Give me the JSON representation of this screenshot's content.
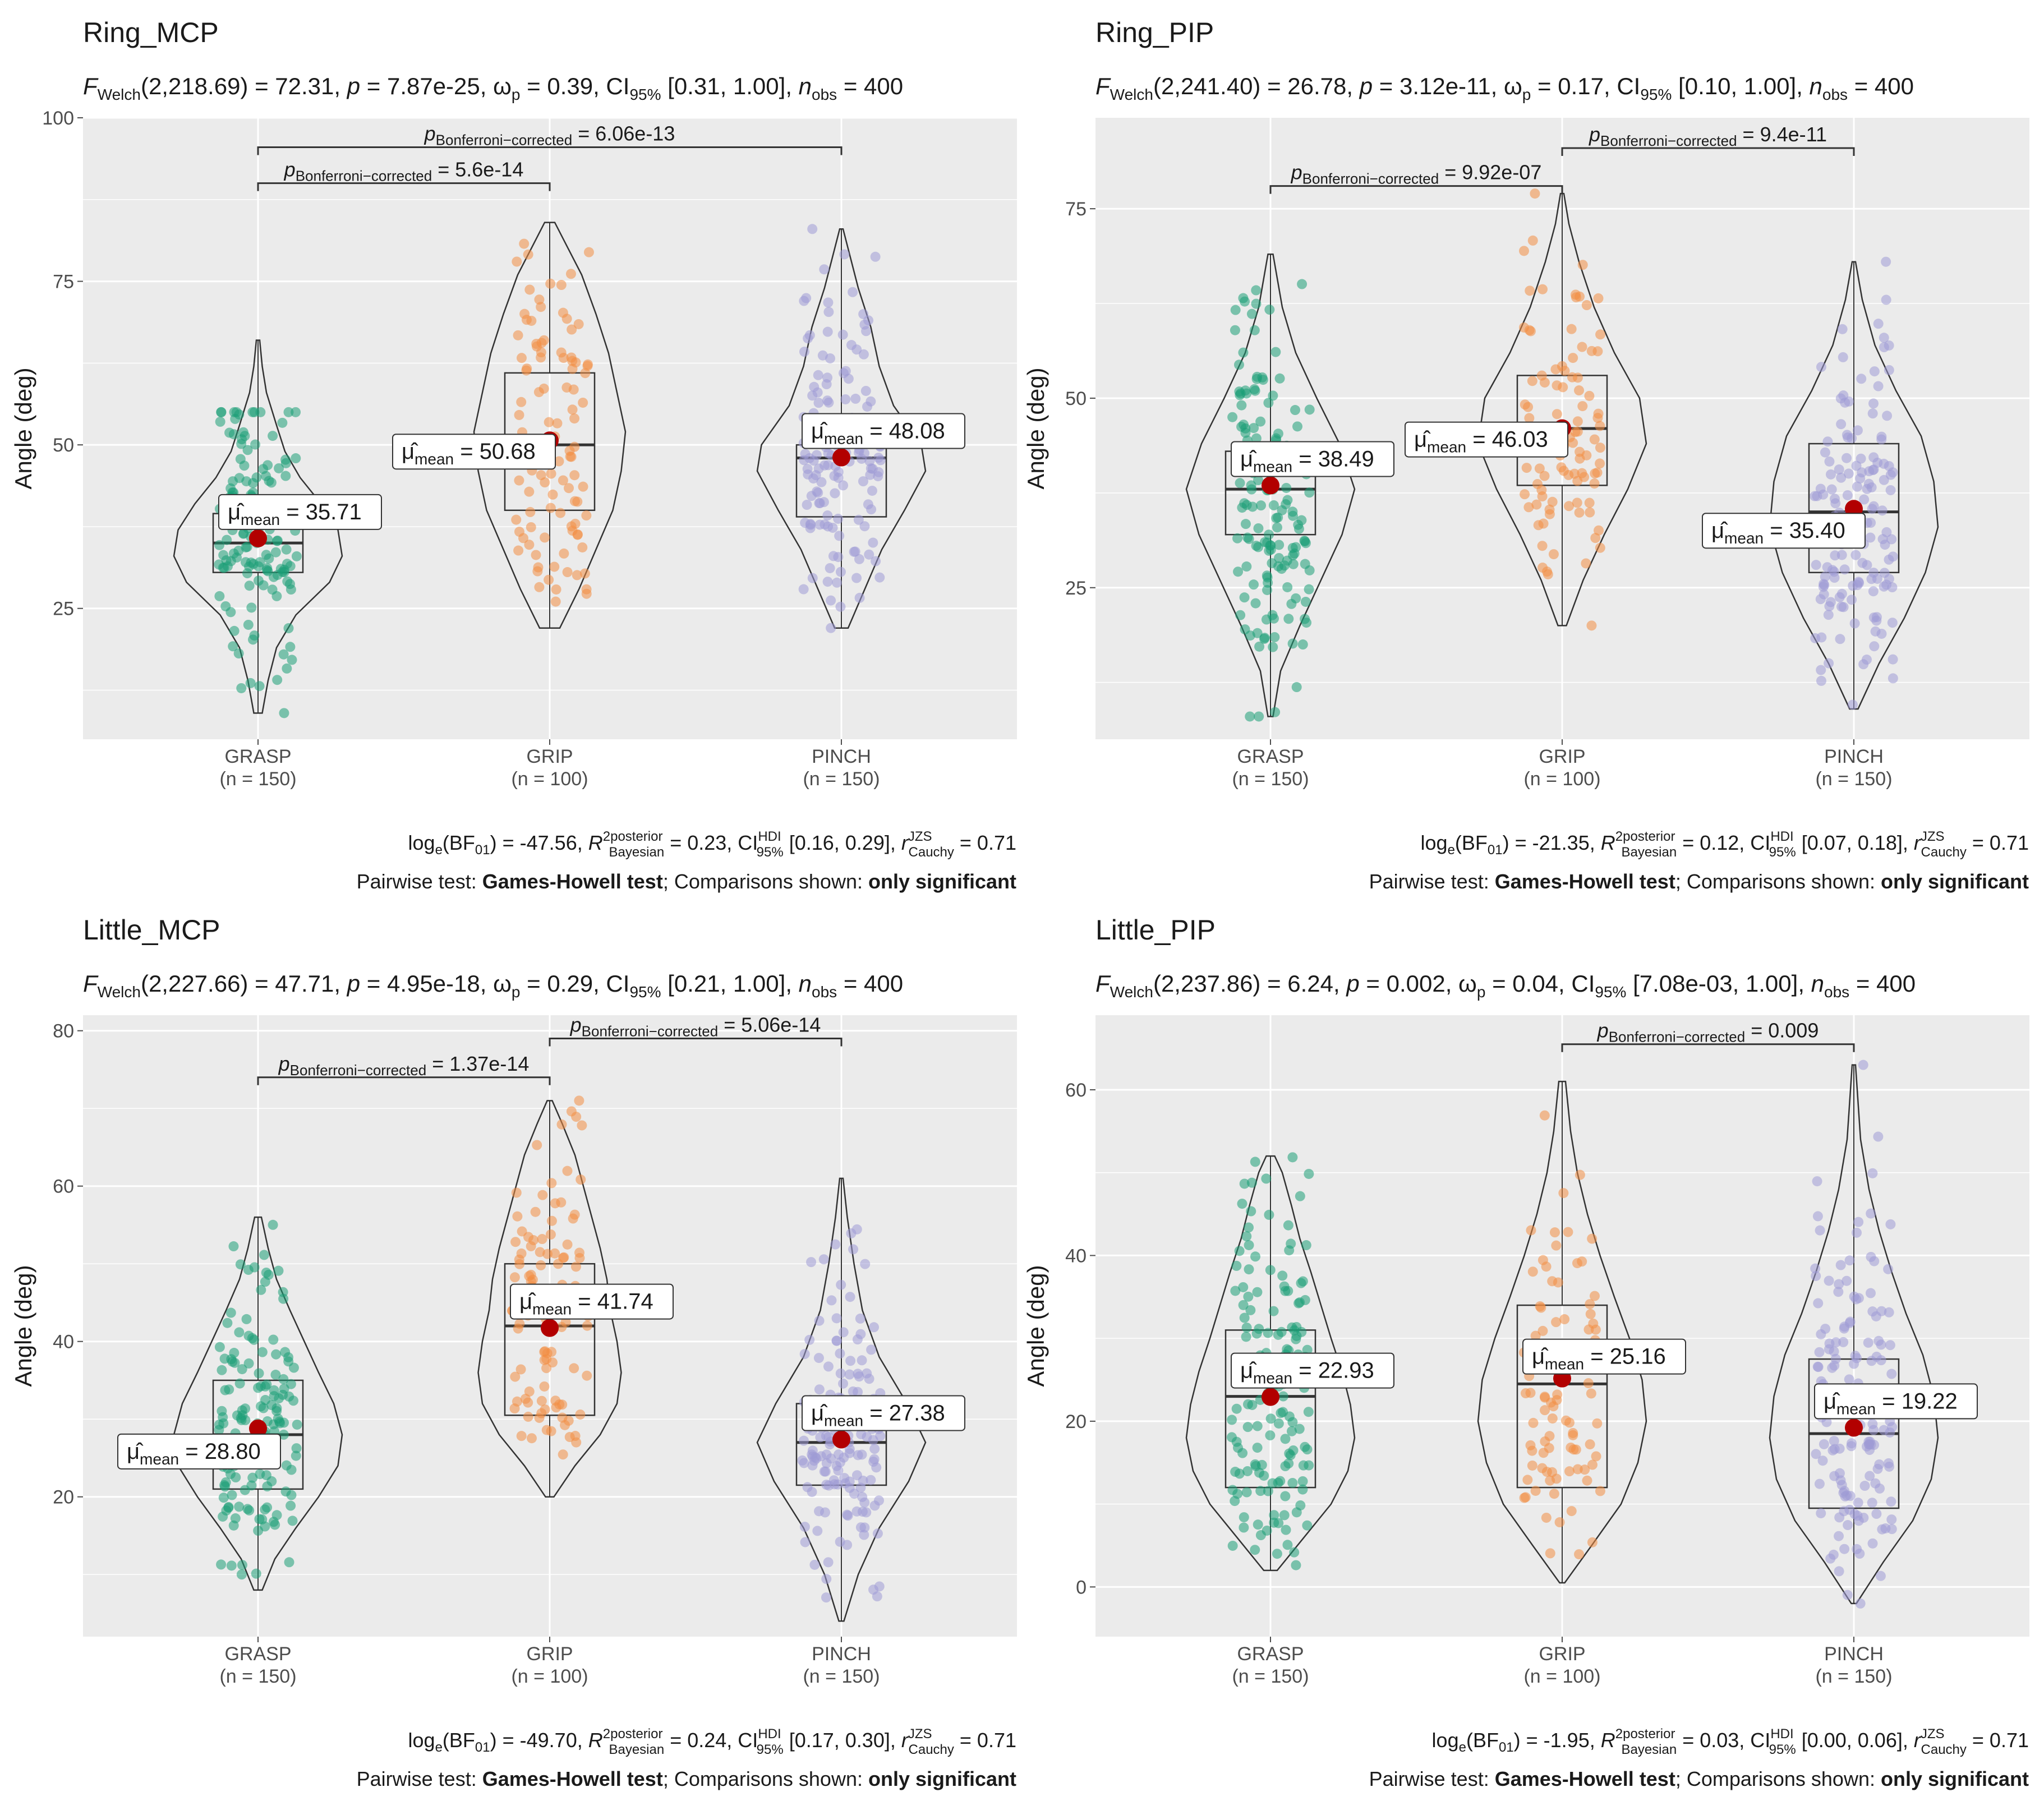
{
  "colors": {
    "panel_bg": "#ebebeb",
    "grid": "#ffffff",
    "grasp": "#1b9e77",
    "grip": "#f28e44",
    "pinch": "#9f9ad6",
    "mean_point": "#b20000",
    "line": "#333333",
    "text": "#1a1a1a",
    "muted": "#4d4d4d"
  },
  "chart_data": [
    {
      "type": "violin-box",
      "title": "Ring_MCP",
      "ylabel": "Angle (deg)",
      "ylim": [
        5,
        100
      ],
      "yticks": [
        25,
        50,
        75,
        100
      ],
      "categories": [
        "GRASP",
        "GRIP",
        "PINCH"
      ],
      "ns": [
        "(n = 150)",
        "(n = 100)",
        "(n = 150)"
      ],
      "stats_line": {
        "stat": "(2,218.69) = 72.31, ",
        "p": " = 7.87e-25, ",
        "w": " = 0.39, CI",
        "ci": " [0.31, 1.00], ",
        "nobs": " = 400"
      },
      "groups": [
        {
          "mean": 35.71,
          "mean_label": "35.71",
          "q1": 30.5,
          "median": 35.0,
          "q3": 39.5,
          "min": 9,
          "max": 66,
          "pmin": 9,
          "pmax": 55,
          "n": 150,
          "violin": [
            [
              9,
              0.05
            ],
            [
              14,
              0.12
            ],
            [
              19,
              0.22
            ],
            [
              24,
              0.45
            ],
            [
              29,
              0.85
            ],
            [
              33,
              1.0
            ],
            [
              37,
              0.95
            ],
            [
              41,
              0.75
            ],
            [
              45,
              0.5
            ],
            [
              49,
              0.32
            ],
            [
              53,
              0.22
            ],
            [
              58,
              0.1
            ],
            [
              62,
              0.05
            ],
            [
              66,
              0.02
            ]
          ]
        },
        {
          "mean": 50.68,
          "mean_label": "50.68",
          "q1": 40.0,
          "median": 50.0,
          "q3": 61.0,
          "min": 22,
          "max": 84,
          "pmin": 22,
          "pmax": 84,
          "n": 100,
          "violin": [
            [
              22,
              0.12
            ],
            [
              28,
              0.35
            ],
            [
              34,
              0.55
            ],
            [
              40,
              0.75
            ],
            [
              46,
              0.85
            ],
            [
              52,
              0.9
            ],
            [
              58,
              0.8
            ],
            [
              64,
              0.7
            ],
            [
              70,
              0.55
            ],
            [
              76,
              0.38
            ],
            [
              80,
              0.22
            ],
            [
              84,
              0.06
            ]
          ]
        },
        {
          "mean": 48.08,
          "mean_label": "48.08",
          "q1": 39.0,
          "median": 48.0,
          "q3": 50.0,
          "min": 22,
          "max": 83,
          "pmin": 22,
          "pmax": 83,
          "n": 150,
          "violin": [
            [
              22,
              0.08
            ],
            [
              28,
              0.28
            ],
            [
              34,
              0.48
            ],
            [
              40,
              0.75
            ],
            [
              46,
              1.0
            ],
            [
              50,
              0.95
            ],
            [
              56,
              0.62
            ],
            [
              62,
              0.45
            ],
            [
              68,
              0.35
            ],
            [
              74,
              0.2
            ],
            [
              80,
              0.08
            ],
            [
              83,
              0.02
            ]
          ]
        }
      ],
      "brackets": [
        {
          "from": 0,
          "to": 1,
          "y": 90,
          "p_label": " = 5.6e-14"
        },
        {
          "from": 0,
          "to": 2,
          "y": 95.5,
          "p_label": " = 6.06e-13"
        }
      ],
      "bayes_line": {
        "a": "(BF",
        "b": ") = -47.56, ",
        "c": " = 0.23, CI",
        "d": " [0.16, 0.29], ",
        "e": " = 0.71"
      },
      "pairwise_line": {
        "a": "Pairwise test: ",
        "b": "Games-Howell test",
        "c": "; Comparisons shown: ",
        "d": "only significant"
      }
    },
    {
      "type": "violin-box",
      "title": "Ring_PIP",
      "ylabel": "Angle (deg)",
      "ylim": [
        5,
        87
      ],
      "yticks": [
        25,
        50,
        75
      ],
      "categories": [
        "GRASP",
        "GRIP",
        "PINCH"
      ],
      "ns": [
        "(n = 150)",
        "(n = 100)",
        "(n = 150)"
      ],
      "stats_line": {
        "stat": "(2,241.40) = 26.78, ",
        "p": " = 3.12e-11, ",
        "w": " = 0.17, CI",
        "ci": " [0.10, 1.00], ",
        "nobs": " = 400"
      },
      "groups": [
        {
          "mean": 38.49,
          "mean_label": "38.49",
          "q1": 32.0,
          "median": 38.0,
          "q3": 43.0,
          "min": 8,
          "max": 69,
          "pmin": 8,
          "pmax": 69,
          "n": 150,
          "violin": [
            [
              8,
              0.03
            ],
            [
              14,
              0.12
            ],
            [
              20,
              0.35
            ],
            [
              26,
              0.6
            ],
            [
              32,
              0.85
            ],
            [
              38,
              1.0
            ],
            [
              44,
              0.82
            ],
            [
              50,
              0.55
            ],
            [
              56,
              0.3
            ],
            [
              62,
              0.14
            ],
            [
              69,
              0.03
            ]
          ]
        },
        {
          "mean": 46.03,
          "mean_label": "46.03",
          "q1": 38.5,
          "median": 46.0,
          "q3": 53.0,
          "min": 20,
          "max": 77,
          "pmin": 20,
          "pmax": 77,
          "n": 100,
          "violin": [
            [
              20,
              0.05
            ],
            [
              26,
              0.25
            ],
            [
              32,
              0.5
            ],
            [
              38,
              0.78
            ],
            [
              44,
              1.0
            ],
            [
              50,
              0.92
            ],
            [
              56,
              0.62
            ],
            [
              62,
              0.38
            ],
            [
              68,
              0.2
            ],
            [
              73,
              0.08
            ],
            [
              77,
              0.02
            ]
          ]
        },
        {
          "mean": 35.4,
          "mean_label": "35.40",
          "q1": 27.0,
          "median": 35.0,
          "q3": 44.0,
          "min": 9,
          "max": 68,
          "pmin": 9,
          "pmax": 68,
          "n": 150,
          "violin": [
            [
              9,
              0.05
            ],
            [
              15,
              0.3
            ],
            [
              21,
              0.6
            ],
            [
              27,
              0.85
            ],
            [
              33,
              1.0
            ],
            [
              39,
              0.95
            ],
            [
              45,
              0.8
            ],
            [
              51,
              0.5
            ],
            [
              57,
              0.25
            ],
            [
              63,
              0.1
            ],
            [
              68,
              0.02
            ]
          ]
        }
      ],
      "brackets": [
        {
          "from": 0,
          "to": 1,
          "y": 78,
          "p_label": " = 9.92e-07"
        },
        {
          "from": 1,
          "to": 2,
          "y": 83,
          "p_label": " = 9.4e-11"
        }
      ],
      "bayes_line": {
        "a": "(BF",
        "b": ") = -21.35, ",
        "c": " = 0.12, CI",
        "d": " [0.07, 0.18], ",
        "e": " = 0.71"
      },
      "pairwise_line": {
        "a": "Pairwise test: ",
        "b": "Games-Howell test",
        "c": "; Comparisons shown: ",
        "d": "only significant"
      }
    },
    {
      "type": "violin-box",
      "title": "Little_MCP",
      "ylabel": "Angle (deg)",
      "ylim": [
        2,
        82
      ],
      "yticks": [
        20,
        40,
        60,
        80
      ],
      "categories": [
        "GRASP",
        "GRIP",
        "PINCH"
      ],
      "ns": [
        "(n = 150)",
        "(n = 100)",
        "(n = 150)"
      ],
      "stats_line": {
        "stat": "(2,227.66) = 47.71, ",
        "p": " = 4.95e-18, ",
        "w": " = 0.29, CI",
        "ci": " [0.21, 1.00], ",
        "nobs": " = 400"
      },
      "groups": [
        {
          "mean": 28.8,
          "mean_label": "28.80",
          "q1": 21.0,
          "median": 28.0,
          "q3": 35.0,
          "min": 8,
          "max": 56,
          "pmin": 8,
          "pmax": 56,
          "n": 150,
          "violin": [
            [
              8,
              0.05
            ],
            [
              12,
              0.2
            ],
            [
              16,
              0.45
            ],
            [
              20,
              0.72
            ],
            [
              24,
              0.95
            ],
            [
              28,
              1.0
            ],
            [
              32,
              0.9
            ],
            [
              36,
              0.72
            ],
            [
              40,
              0.55
            ],
            [
              44,
              0.38
            ],
            [
              48,
              0.22
            ],
            [
              52,
              0.12
            ],
            [
              56,
              0.04
            ]
          ]
        },
        {
          "mean": 41.74,
          "mean_label": "41.74",
          "q1": 30.5,
          "median": 42.0,
          "q3": 50.0,
          "min": 20,
          "max": 71,
          "pmin": 20,
          "pmax": 71,
          "n": 100,
          "violin": [
            [
              20,
              0.05
            ],
            [
              24,
              0.3
            ],
            [
              28,
              0.6
            ],
            [
              32,
              0.8
            ],
            [
              36,
              0.85
            ],
            [
              40,
              0.8
            ],
            [
              44,
              0.72
            ],
            [
              48,
              0.68
            ],
            [
              52,
              0.6
            ],
            [
              58,
              0.45
            ],
            [
              64,
              0.3
            ],
            [
              68,
              0.15
            ],
            [
              71,
              0.03
            ]
          ]
        },
        {
          "mean": 27.38,
          "mean_label": "27.38",
          "q1": 21.5,
          "median": 27.0,
          "q3": 32.0,
          "min": 4,
          "max": 61,
          "pmin": 4,
          "pmax": 61,
          "n": 150,
          "violin": [
            [
              4,
              0.03
            ],
            [
              10,
              0.2
            ],
            [
              16,
              0.45
            ],
            [
              22,
              0.8
            ],
            [
              27,
              1.0
            ],
            [
              32,
              0.78
            ],
            [
              38,
              0.45
            ],
            [
              44,
              0.25
            ],
            [
              50,
              0.15
            ],
            [
              56,
              0.07
            ],
            [
              61,
              0.02
            ]
          ]
        }
      ],
      "brackets": [
        {
          "from": 0,
          "to": 1,
          "y": 74,
          "p_label": " = 1.37e-14"
        },
        {
          "from": 1,
          "to": 2,
          "y": 79,
          "p_label": " = 5.06e-14"
        }
      ],
      "bayes_line": {
        "a": "(BF",
        "b": ") = -49.70, ",
        "c": " = 0.24, CI",
        "d": " [0.17, 0.30], ",
        "e": " = 0.71"
      },
      "pairwise_line": {
        "a": "Pairwise test: ",
        "b": "Games-Howell test",
        "c": "; Comparisons shown: ",
        "d": "only significant"
      }
    },
    {
      "type": "violin-box",
      "title": "Little_PIP",
      "ylabel": "Angle (deg)",
      "ylim": [
        -6,
        69
      ],
      "yticks": [
        0,
        20,
        40,
        60
      ],
      "categories": [
        "GRASP",
        "GRIP",
        "PINCH"
      ],
      "ns": [
        "(n = 150)",
        "(n = 100)",
        "(n = 150)"
      ],
      "stats_line": {
        "stat": "(2,237.86) = 6.24, ",
        "p": " = 0.002, ",
        "w": " = 0.04, CI",
        "ci": " [7.08e-03, 1.00], ",
        "nobs": " = 400"
      },
      "groups": [
        {
          "mean": 22.93,
          "mean_label": "22.93",
          "q1": 12.0,
          "median": 23.0,
          "q3": 31.0,
          "min": 2,
          "max": 52,
          "pmin": 2,
          "pmax": 52,
          "n": 150,
          "violin": [
            [
              2,
              0.08
            ],
            [
              6,
              0.4
            ],
            [
              10,
              0.72
            ],
            [
              14,
              0.92
            ],
            [
              18,
              1.0
            ],
            [
              22,
              0.95
            ],
            [
              26,
              0.85
            ],
            [
              30,
              0.72
            ],
            [
              34,
              0.6
            ],
            [
              38,
              0.48
            ],
            [
              42,
              0.35
            ],
            [
              46,
              0.25
            ],
            [
              50,
              0.14
            ],
            [
              52,
              0.05
            ]
          ]
        },
        {
          "mean": 25.16,
          "mean_label": "25.16",
          "q1": 12.0,
          "median": 24.5,
          "q3": 34.0,
          "min": 0.5,
          "max": 61,
          "pmin": 0.5,
          "pmax": 61,
          "n": 100,
          "violin": [
            [
              0.5,
              0.03
            ],
            [
              5,
              0.35
            ],
            [
              10,
              0.7
            ],
            [
              15,
              0.9
            ],
            [
              20,
              1.0
            ],
            [
              25,
              0.95
            ],
            [
              30,
              0.8
            ],
            [
              35,
              0.62
            ],
            [
              40,
              0.45
            ],
            [
              45,
              0.3
            ],
            [
              50,
              0.18
            ],
            [
              55,
              0.1
            ],
            [
              61,
              0.04
            ]
          ]
        },
        {
          "mean": 19.22,
          "mean_label": "19.22",
          "q1": 9.5,
          "median": 18.5,
          "q3": 27.5,
          "min": -2,
          "max": 63,
          "pmin": -2,
          "pmax": 63,
          "n": 150,
          "violin": [
            [
              -2,
              0.03
            ],
            [
              3,
              0.35
            ],
            [
              8,
              0.7
            ],
            [
              13,
              0.92
            ],
            [
              18,
              1.0
            ],
            [
              23,
              0.95
            ],
            [
              28,
              0.82
            ],
            [
              33,
              0.62
            ],
            [
              38,
              0.45
            ],
            [
              43,
              0.3
            ],
            [
              48,
              0.18
            ],
            [
              54,
              0.08
            ],
            [
              63,
              0.02
            ]
          ]
        }
      ],
      "brackets": [
        {
          "from": 1,
          "to": 2,
          "y": 65.5,
          "p_label": " = 0.009"
        }
      ],
      "bayes_line": {
        "a": "(BF",
        "b": ") = -1.95, ",
        "c": " = 0.03, CI",
        "d": " [0.00, 0.06], ",
        "e": " = 0.71"
      },
      "pairwise_line": {
        "a": "Pairwise test: ",
        "b": "Games-Howell test",
        "c": "; Comparisons shown: ",
        "d": "only significant"
      }
    }
  ]
}
